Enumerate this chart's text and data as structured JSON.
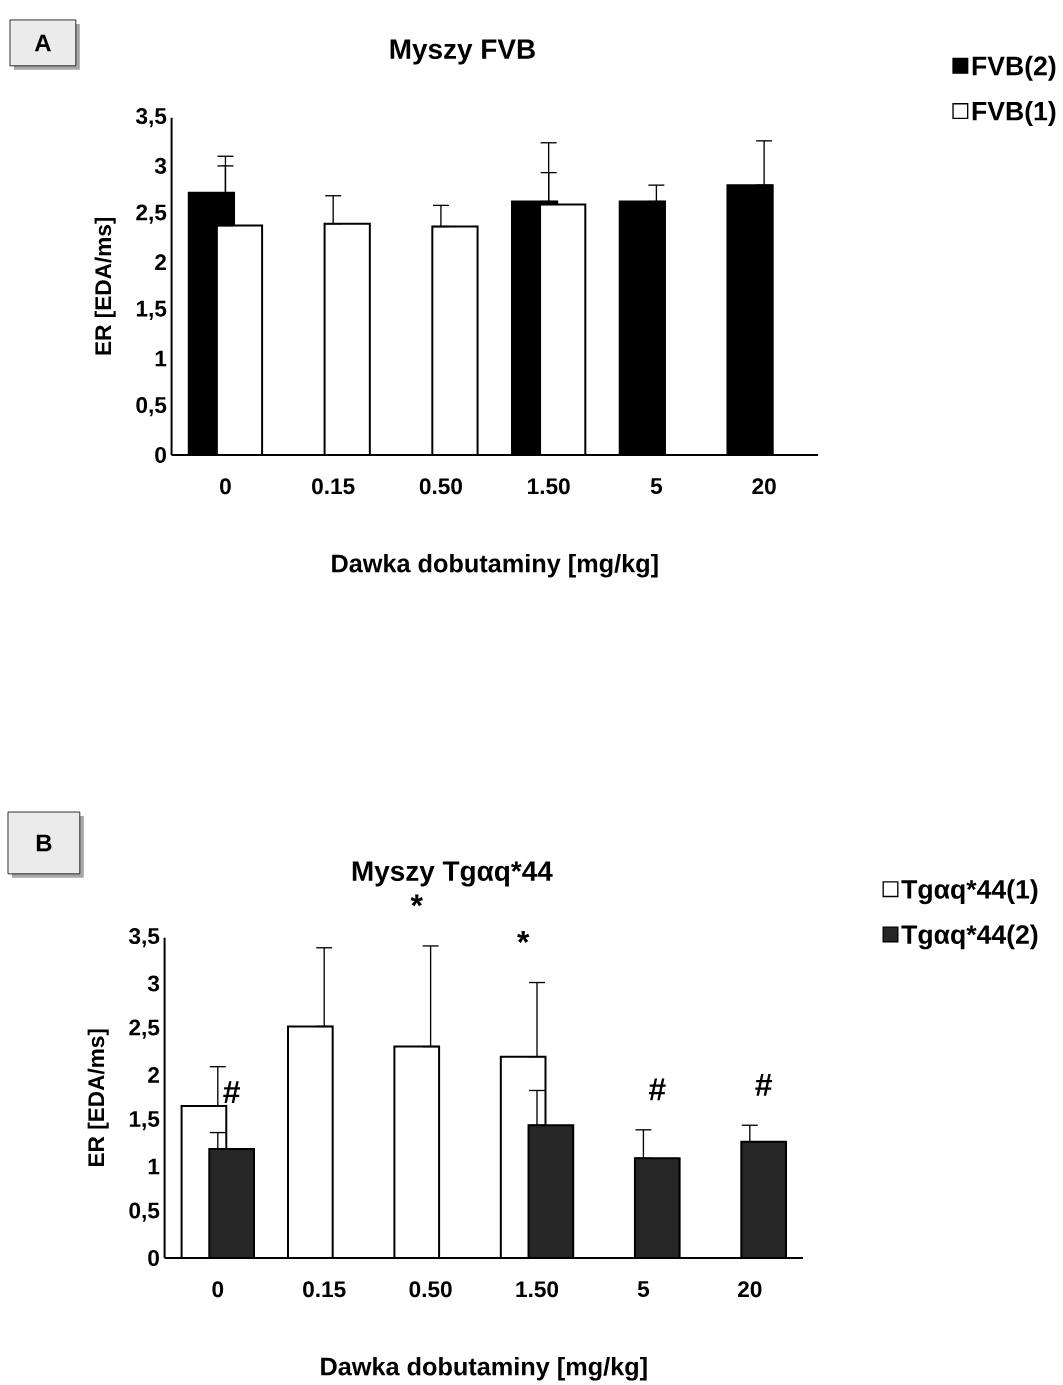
{
  "chart_data": [
    {
      "type": "bar",
      "title": "Myszy FVB",
      "xlabel": "Dawka dobutaminy [mg/kg]",
      "ylabel": "ER [EDA/ms]",
      "categories": [
        "0",
        "0.15",
        "0.50",
        "1.50",
        "5",
        "20"
      ],
      "series": [
        {
          "name": "FVB(2)",
          "color": "#000000",
          "values": [
            2.72,
            null,
            null,
            2.63,
            2.63,
            2.8
          ],
          "errors": [
            [
              2.72,
              3.0
            ],
            null,
            null,
            [
              2.63,
              3.24
            ],
            [
              2.63,
              2.8
            ],
            [
              2.8,
              3.26
            ]
          ]
        },
        {
          "name": "FVB(1)",
          "color": "#ffffff",
          "values": [
            2.38,
            2.4,
            2.37,
            2.6,
            null,
            null
          ],
          "errors": [
            [
              2.38,
              3.1
            ],
            [
              2.4,
              2.69
            ],
            [
              2.37,
              2.59
            ],
            [
              2.6,
              2.93
            ],
            null,
            null
          ]
        }
      ],
      "ylim": [
        0,
        3.5
      ],
      "yticks": [
        0,
        {
          "value": 0.5,
          "label": "0,5"
        },
        1,
        {
          "value": 1.5,
          "label": "1,5"
        },
        2,
        {
          "value": 2.5,
          "label": "2,5"
        },
        3,
        {
          "value": 3.5,
          "label": "3,5"
        }
      ],
      "grid": false,
      "legend": "top right",
      "annotations": [
        "A"
      ]
    },
    {
      "type": "bar",
      "title": "Myszy Tgαq*44",
      "xlabel": "Dawka dobutaminy [mg/kg]",
      "ylabel": "ER [EDA/ms]",
      "categories": [
        "0",
        "0.15",
        "0.50",
        "1.50",
        "5",
        "20"
      ],
      "series": [
        {
          "name": "Tgαq*44(1)",
          "color": "#ffffff",
          "values": [
            1.66,
            2.53,
            2.31,
            2.2,
            null,
            null
          ],
          "errors": [
            [
              1.66,
              2.09
            ],
            [
              2.53,
              3.39
            ],
            [
              2.31,
              3.41
            ],
            [
              2.2,
              3.01
            ],
            null,
            null
          ]
        },
        {
          "name": "Tgαq*44(2)",
          "color": "#262626",
          "values": [
            1.19,
            null,
            null,
            1.45,
            1.09,
            1.27
          ],
          "errors": [
            [
              1.19,
              1.37
            ],
            null,
            null,
            [
              1.45,
              1.83
            ],
            [
              1.09,
              1.4
            ],
            [
              1.27,
              1.45
            ]
          ]
        }
      ],
      "ylim": [
        0,
        3.5
      ],
      "yticks": [
        0,
        {
          "value": 0.5,
          "label": "0,5"
        },
        1,
        {
          "value": 1.5,
          "label": "1,5"
        },
        2,
        {
          "value": 2.5,
          "label": "2,5"
        },
        3,
        {
          "value": 3.5,
          "label": "3,5"
        }
      ],
      "grid": false,
      "legend": "top right",
      "annotations": [
        "B",
        {
          "text": "#",
          "x": "0",
          "y": 1.37
        },
        {
          "text": "*",
          "x": "0.50",
          "y": 3.41
        },
        {
          "text": "*",
          "x": "1.50",
          "y": 3.01
        },
        {
          "text": "#",
          "x": "5",
          "y": 1.4
        },
        {
          "text": "#",
          "x": "20",
          "y": 1.45
        }
      ]
    }
  ]
}
